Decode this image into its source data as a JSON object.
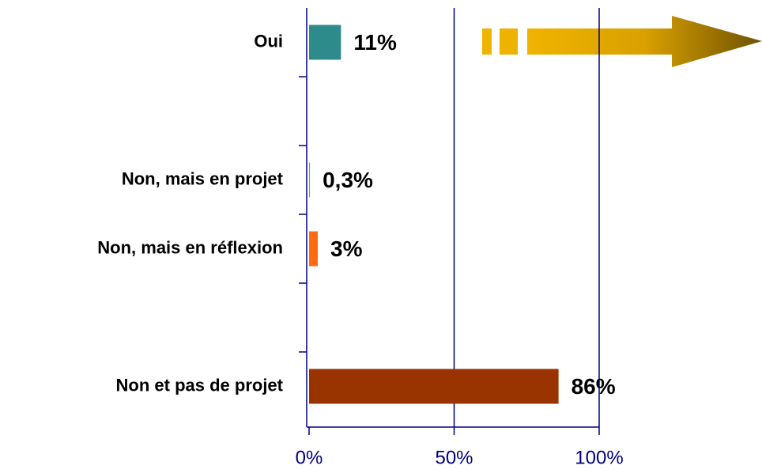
{
  "chart_data": {
    "type": "barh",
    "categories": [
      "Oui",
      null,
      "Non, mais en projet",
      "Non, mais en réflexion",
      null,
      "Non et pas de projet"
    ],
    "values": [
      11,
      null,
      0.3,
      3,
      null,
      86
    ],
    "value_labels": [
      "11%",
      null,
      "0,3%",
      "3%",
      null,
      "86%"
    ],
    "colors": [
      "#2e8b8b",
      null,
      "#33aacc",
      "#ff6a13",
      null,
      "#993300"
    ],
    "xlim": [
      0,
      100
    ],
    "xticks": [
      {
        "value": 0,
        "label": "0%"
      },
      {
        "value": 50,
        "label": "50%"
      },
      {
        "value": 100,
        "label": "100%"
      }
    ],
    "grid": true
  }
}
